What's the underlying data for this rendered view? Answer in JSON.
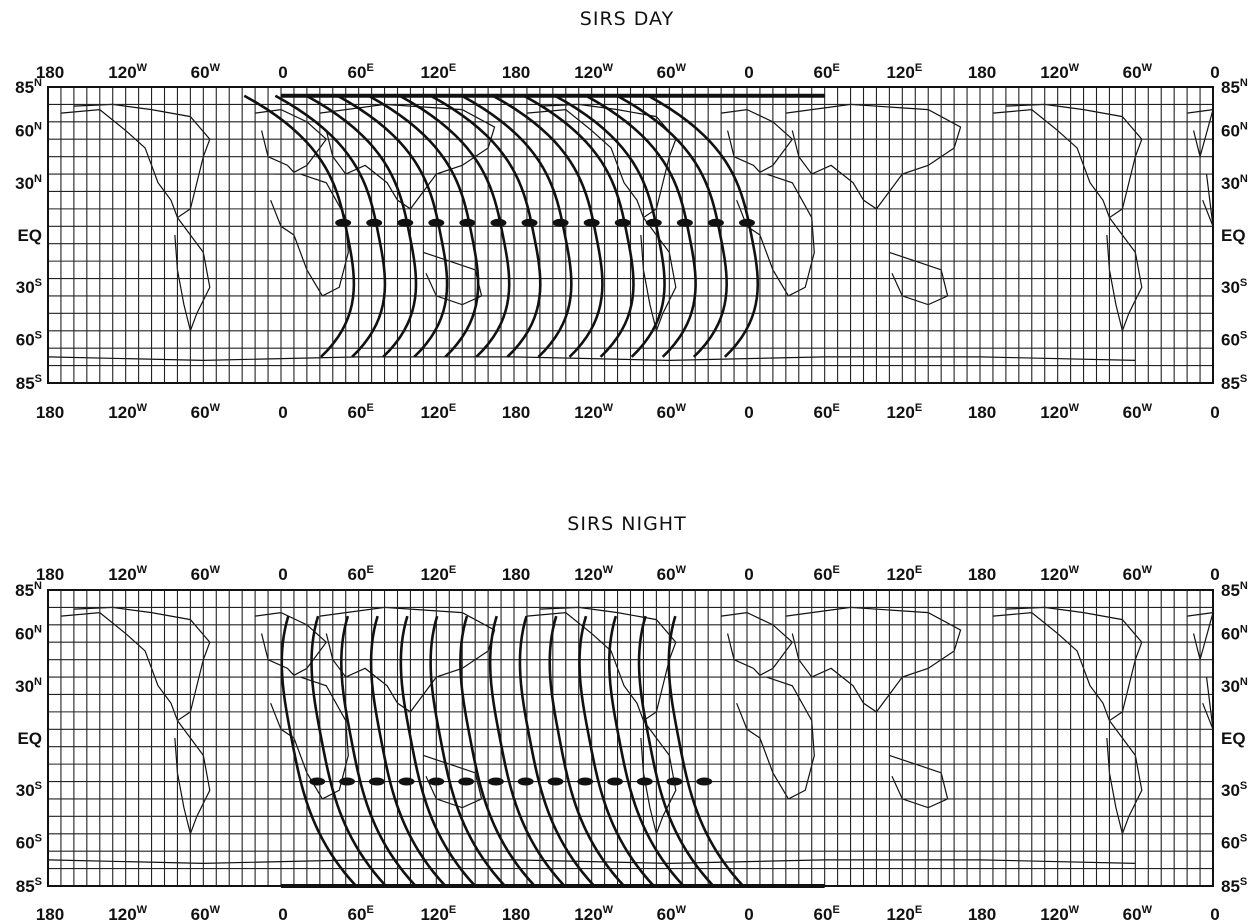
{
  "panels": [
    {
      "id": "day",
      "title": "SIRS DAY",
      "top_lon_labels": [
        "180",
        "120W",
        "60W",
        "0",
        "60E",
        "120E",
        "180",
        "120W",
        "60W",
        "0",
        "60E",
        "120E",
        "180",
        "120W",
        "60W",
        "0"
      ],
      "bottom_lon_labels": [
        "180",
        "120W",
        "60W",
        "0",
        "60E",
        "120E",
        "180",
        "120W",
        "60W",
        "0",
        "60E",
        "120E",
        "180",
        "120W",
        "60W",
        "0"
      ],
      "left_lat_labels": [
        "85N",
        "60N",
        "30N",
        "EQ",
        "30S",
        "60S",
        "85S"
      ],
      "right_lat_labels": [
        "85N",
        "60N",
        "30N",
        "EQ",
        "30S",
        "60S",
        "85S"
      ],
      "track_direction": "descending",
      "num_tracks": 14,
      "track_lat_range": [
        -70,
        80
      ],
      "marker_lat": 7
    },
    {
      "id": "night",
      "title": "SIRS NIGHT",
      "top_lon_labels": [
        "180",
        "120W",
        "60W",
        "0",
        "60E",
        "120E",
        "180",
        "120W",
        "60W",
        "0",
        "60E",
        "120E",
        "180",
        "120W",
        "60W",
        "0"
      ],
      "bottom_lon_labels": [
        "180",
        "120W",
        "60W",
        "0",
        "60E",
        "120E",
        "180",
        "120W",
        "60W",
        "0",
        "60E",
        "120E",
        "180",
        "120W",
        "60W",
        "0"
      ],
      "left_lat_labels": [
        "85N",
        "60N",
        "30N",
        "EQ",
        "30S",
        "60S",
        "85S"
      ],
      "right_lat_labels": [
        "85N",
        "60N",
        "30N",
        "EQ",
        "30S",
        "60S",
        "85S"
      ],
      "track_direction": "ascending",
      "num_tracks": 14,
      "track_lat_range": [
        -85,
        70
      ],
      "marker_lat": -25
    }
  ],
  "colors": {
    "ink": "#111111",
    "grid": "#222222",
    "background": "#ffffff"
  }
}
